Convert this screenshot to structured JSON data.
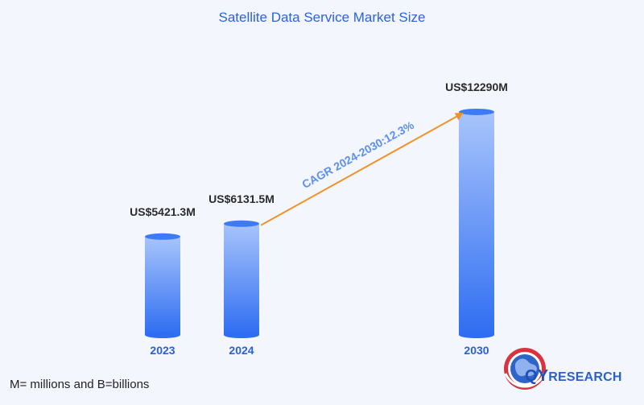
{
  "chart_data": {
    "type": "bar",
    "title": "Satellite Data Service Market Size",
    "categories": [
      "2023",
      "2024",
      "2030"
    ],
    "values": [
      5421.3,
      6131.5,
      12290
    ],
    "value_labels": [
      "US$5421.3M",
      "US$6131.5M",
      "US$12290M"
    ],
    "annotation": "CAGR 2024-2030:12.3%",
    "xlabel": "",
    "ylabel": ""
  },
  "footnote": "M= millions and B=billions",
  "logo": {
    "brand_prefix": "QY",
    "brand_suffix": "RESEARCH"
  },
  "colors": {
    "title": "#2b63e0",
    "bar_top": "#a8c4fb",
    "bar_bottom": "#2f6ef2",
    "arrow": "#f0922a",
    "annotation": "#5b8ff0",
    "category_label": "#2a5fd6"
  }
}
